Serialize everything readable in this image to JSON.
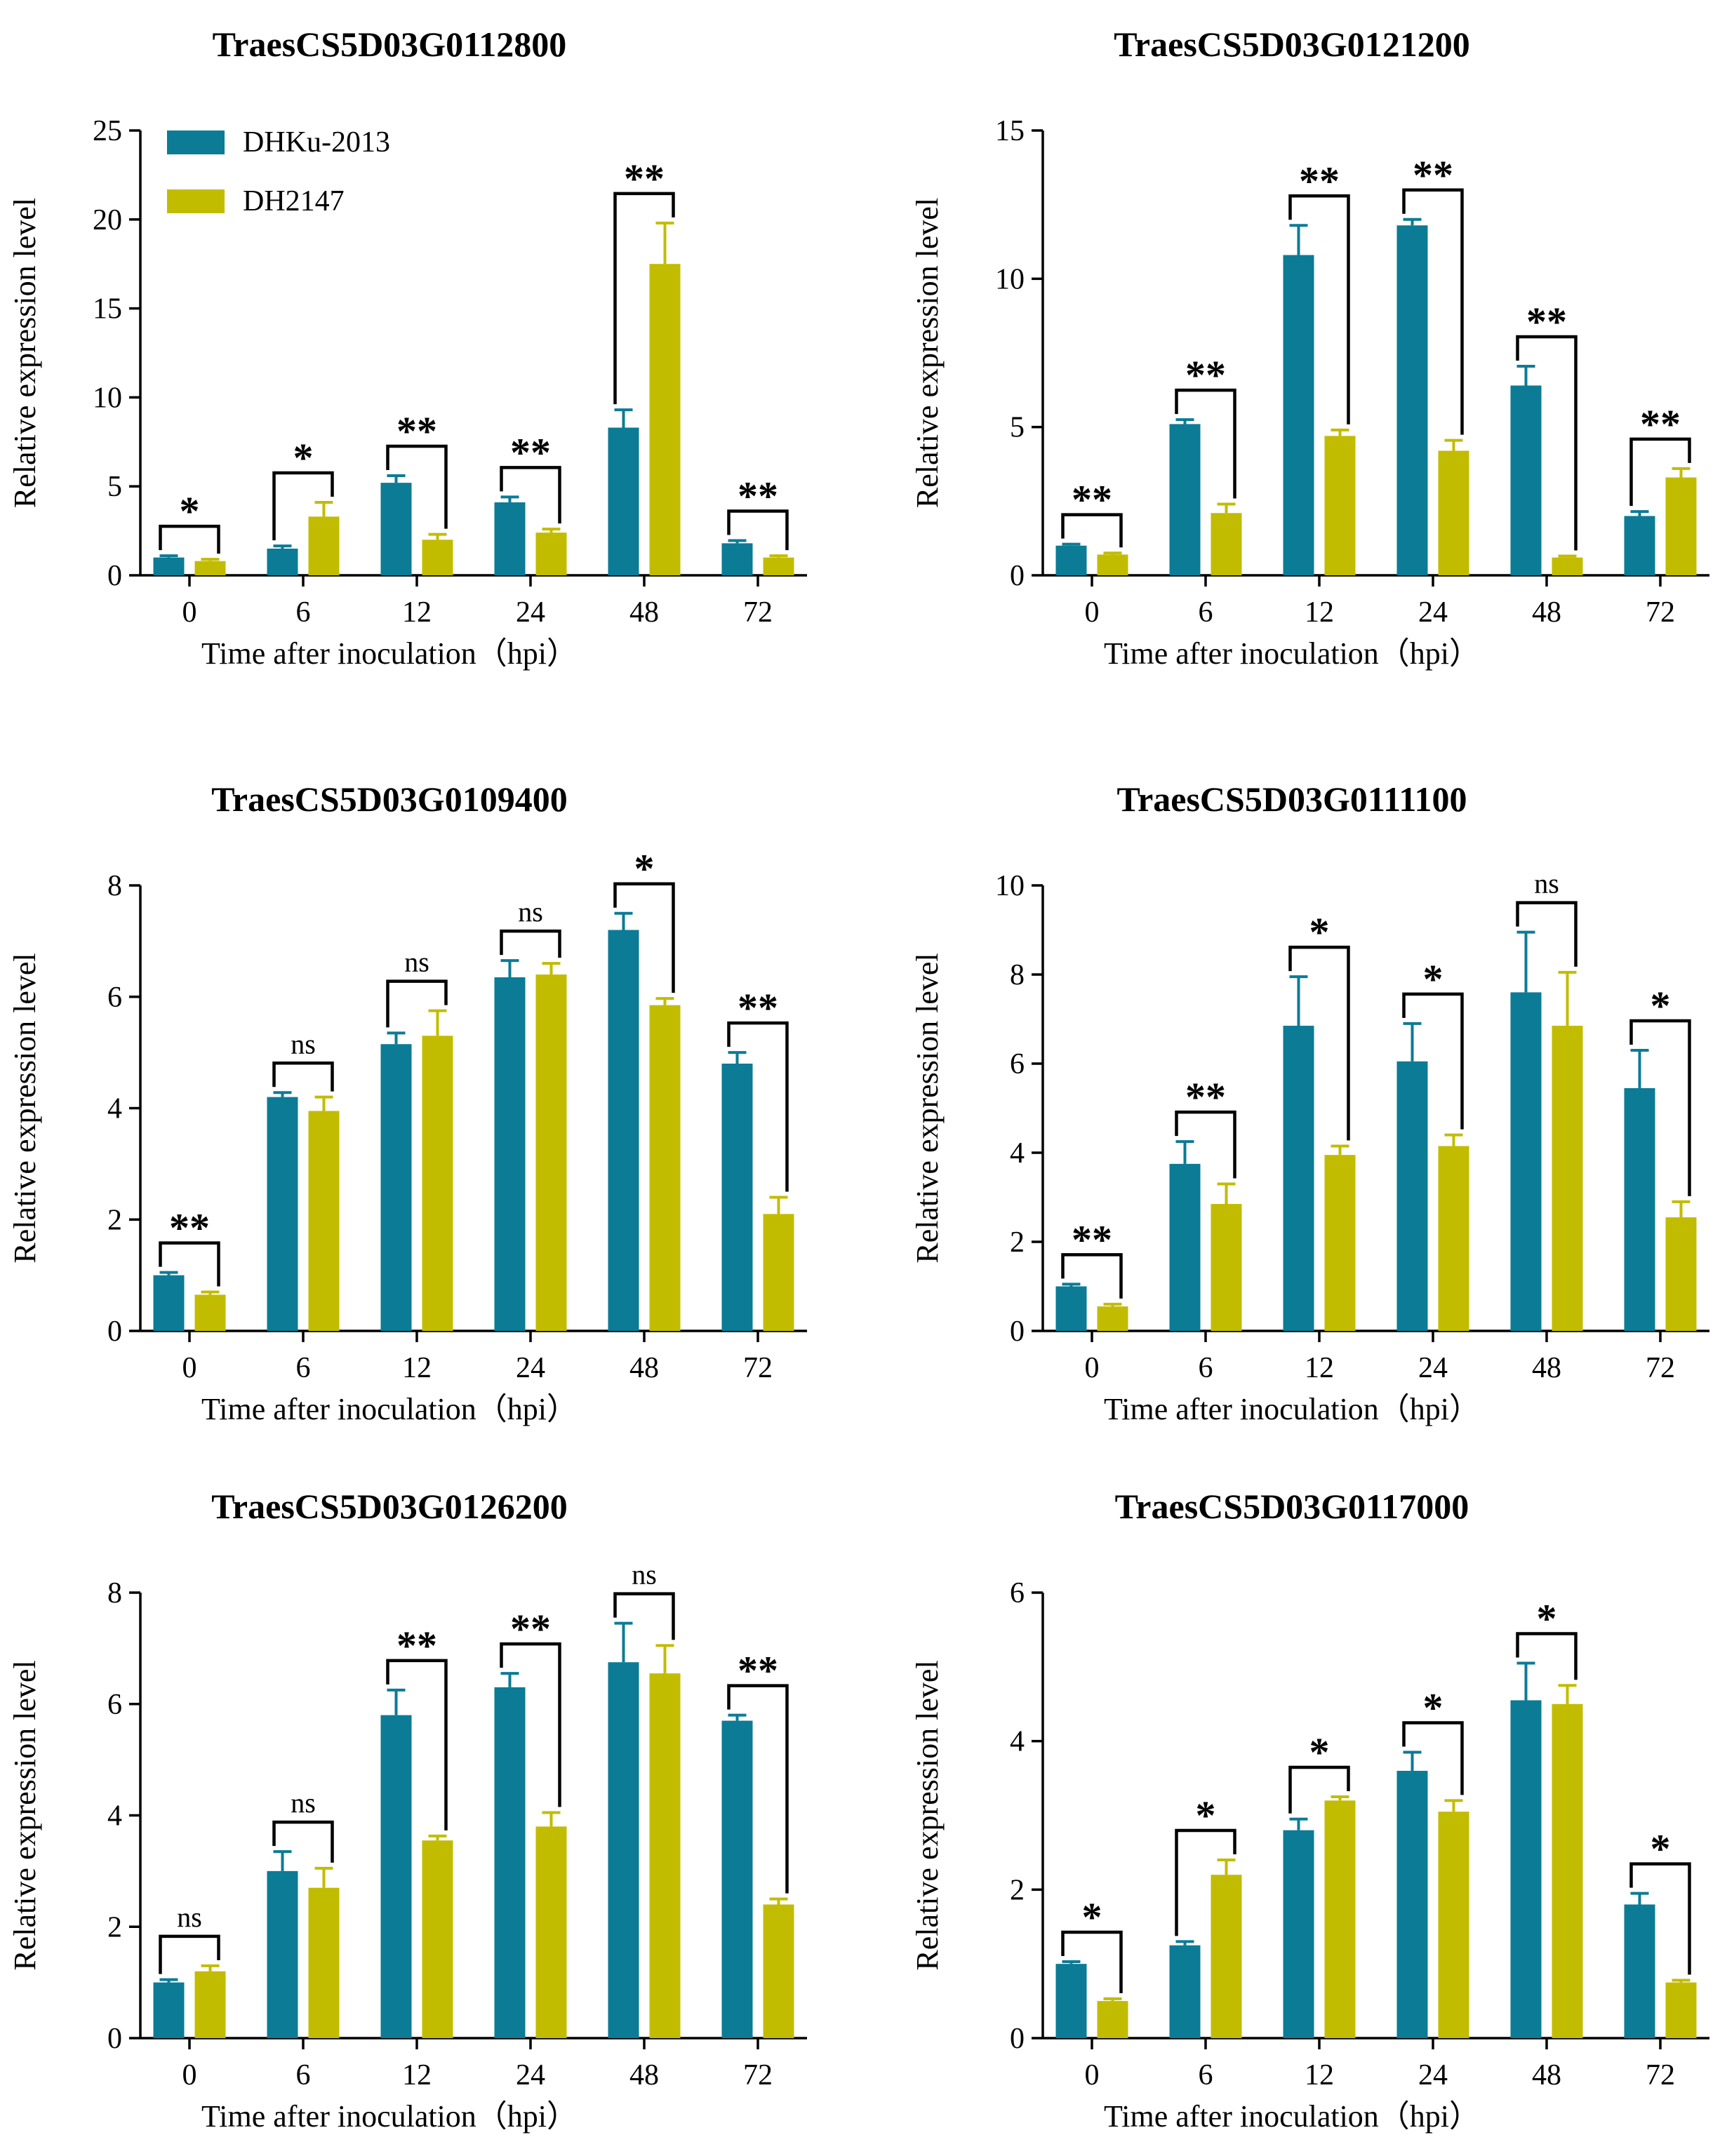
{
  "legend": [
    {
      "name": "DHKu-2013",
      "color": "#0b7b96"
    },
    {
      "name": "DH2147",
      "color": "#c2bc00"
    }
  ],
  "chart_data": [
    {
      "type": "bar",
      "title": "TraesCS5D03G0112800",
      "xlabel": "Time after inoculation（hpi）",
      "ylabel": "Relative expression level",
      "categories": [
        "0",
        "6",
        "12",
        "24",
        "48",
        "72"
      ],
      "ylim": [
        0,
        25
      ],
      "yticks": [
        0,
        5,
        10,
        15,
        20,
        25
      ],
      "series": [
        {
          "name": "DHKu-2013",
          "values": [
            1.0,
            1.5,
            5.2,
            4.1,
            8.3,
            1.8
          ],
          "errors": [
            0.1,
            0.15,
            0.4,
            0.3,
            1.0,
            0.15
          ]
        },
        {
          "name": "DH2147",
          "values": [
            0.8,
            3.3,
            2.0,
            2.4,
            17.5,
            1.0
          ],
          "errors": [
            0.1,
            0.8,
            0.3,
            0.2,
            2.3,
            0.1
          ]
        }
      ],
      "significance": [
        "*",
        "*",
        "**",
        "**",
        "**",
        "**"
      ]
    },
    {
      "type": "bar",
      "title": "TraesCS5D03G0121200",
      "xlabel": "Time after inoculation（hpi）",
      "ylabel": "Relative expression level",
      "categories": [
        "0",
        "6",
        "12",
        "24",
        "48",
        "72"
      ],
      "ylim": [
        0,
        15
      ],
      "yticks": [
        0,
        5,
        10,
        15
      ],
      "series": [
        {
          "name": "DHKu-2013",
          "values": [
            1.0,
            5.1,
            10.8,
            11.8,
            6.4,
            2.0
          ],
          "errors": [
            0.05,
            0.15,
            1.0,
            0.2,
            0.65,
            0.15
          ]
        },
        {
          "name": "DH2147",
          "values": [
            0.7,
            2.1,
            4.7,
            4.2,
            0.6,
            3.3
          ],
          "errors": [
            0.05,
            0.3,
            0.2,
            0.35,
            0.05,
            0.3
          ]
        }
      ],
      "significance": [
        "**",
        "**",
        "**",
        "**",
        "**",
        "**"
      ]
    },
    {
      "type": "bar",
      "title": "TraesCS5D03G0109400",
      "xlabel": "Time after inoculation（hpi）",
      "ylabel": "Relative expression level",
      "categories": [
        "0",
        "6",
        "12",
        "24",
        "48",
        "72"
      ],
      "ylim": [
        0,
        8
      ],
      "yticks": [
        0,
        2,
        4,
        6,
        8
      ],
      "series": [
        {
          "name": "DHKu-2013",
          "values": [
            1.0,
            4.2,
            5.15,
            6.35,
            7.2,
            4.8
          ],
          "errors": [
            0.05,
            0.08,
            0.2,
            0.3,
            0.3,
            0.2
          ]
        },
        {
          "name": "DH2147",
          "values": [
            0.65,
            3.95,
            5.3,
            6.4,
            5.85,
            2.1
          ],
          "errors": [
            0.05,
            0.25,
            0.45,
            0.2,
            0.12,
            0.3
          ]
        }
      ],
      "significance": [
        "**",
        "ns",
        "ns",
        "ns",
        "*",
        "**"
      ]
    },
    {
      "type": "bar",
      "title": "TraesCS5D03G0111100",
      "xlabel": "Time after inoculation（hpi）",
      "ylabel": "Relative expression level",
      "categories": [
        "0",
        "6",
        "12",
        "24",
        "48",
        "72"
      ],
      "ylim": [
        0,
        10
      ],
      "yticks": [
        0,
        2,
        4,
        6,
        8,
        10
      ],
      "series": [
        {
          "name": "DHKu-2013",
          "values": [
            1.0,
            3.75,
            6.85,
            6.05,
            7.6,
            5.45
          ],
          "errors": [
            0.05,
            0.5,
            1.1,
            0.85,
            1.35,
            0.85
          ]
        },
        {
          "name": "DH2147",
          "values": [
            0.55,
            2.85,
            3.95,
            4.15,
            6.85,
            2.55
          ],
          "errors": [
            0.05,
            0.45,
            0.2,
            0.25,
            1.2,
            0.35
          ]
        }
      ],
      "significance": [
        "**",
        "**",
        "*",
        "*",
        "ns",
        "*"
      ]
    },
    {
      "type": "bar",
      "title": "TraesCS5D03G0126200",
      "xlabel": "Time after inoculation（hpi）",
      "ylabel": "Relative expression level",
      "categories": [
        "0",
        "6",
        "12",
        "24",
        "48",
        "72"
      ],
      "ylim": [
        0,
        8
      ],
      "yticks": [
        0,
        2,
        4,
        6,
        8
      ],
      "series": [
        {
          "name": "DHKu-2013",
          "values": [
            1.0,
            3.0,
            5.8,
            6.3,
            6.75,
            5.7
          ],
          "errors": [
            0.05,
            0.35,
            0.45,
            0.25,
            0.7,
            0.1
          ]
        },
        {
          "name": "DH2147",
          "values": [
            1.2,
            2.7,
            3.55,
            3.8,
            6.55,
            2.4
          ],
          "errors": [
            0.1,
            0.35,
            0.08,
            0.25,
            0.5,
            0.1
          ]
        }
      ],
      "significance": [
        "ns",
        "ns",
        "**",
        "**",
        "ns",
        "**"
      ]
    },
    {
      "type": "bar",
      "title": "TraesCS5D03G0117000",
      "xlabel": "Time after inoculation（hpi）",
      "ylabel": "Relative expression level",
      "categories": [
        "0",
        "6",
        "12",
        "24",
        "48",
        "72"
      ],
      "ylim": [
        0,
        6
      ],
      "yticks": [
        0,
        2,
        4,
        6
      ],
      "series": [
        {
          "name": "DHKu-2013",
          "values": [
            1.0,
            1.25,
            2.8,
            3.6,
            4.55,
            1.8
          ],
          "errors": [
            0.03,
            0.05,
            0.15,
            0.25,
            0.5,
            0.15
          ]
        },
        {
          "name": "DH2147",
          "values": [
            0.5,
            2.2,
            3.2,
            3.05,
            4.5,
            0.75
          ],
          "errors": [
            0.03,
            0.2,
            0.05,
            0.15,
            0.25,
            0.03
          ]
        }
      ],
      "significance": [
        "*",
        "*",
        "*",
        "*",
        "*",
        "*"
      ]
    }
  ]
}
